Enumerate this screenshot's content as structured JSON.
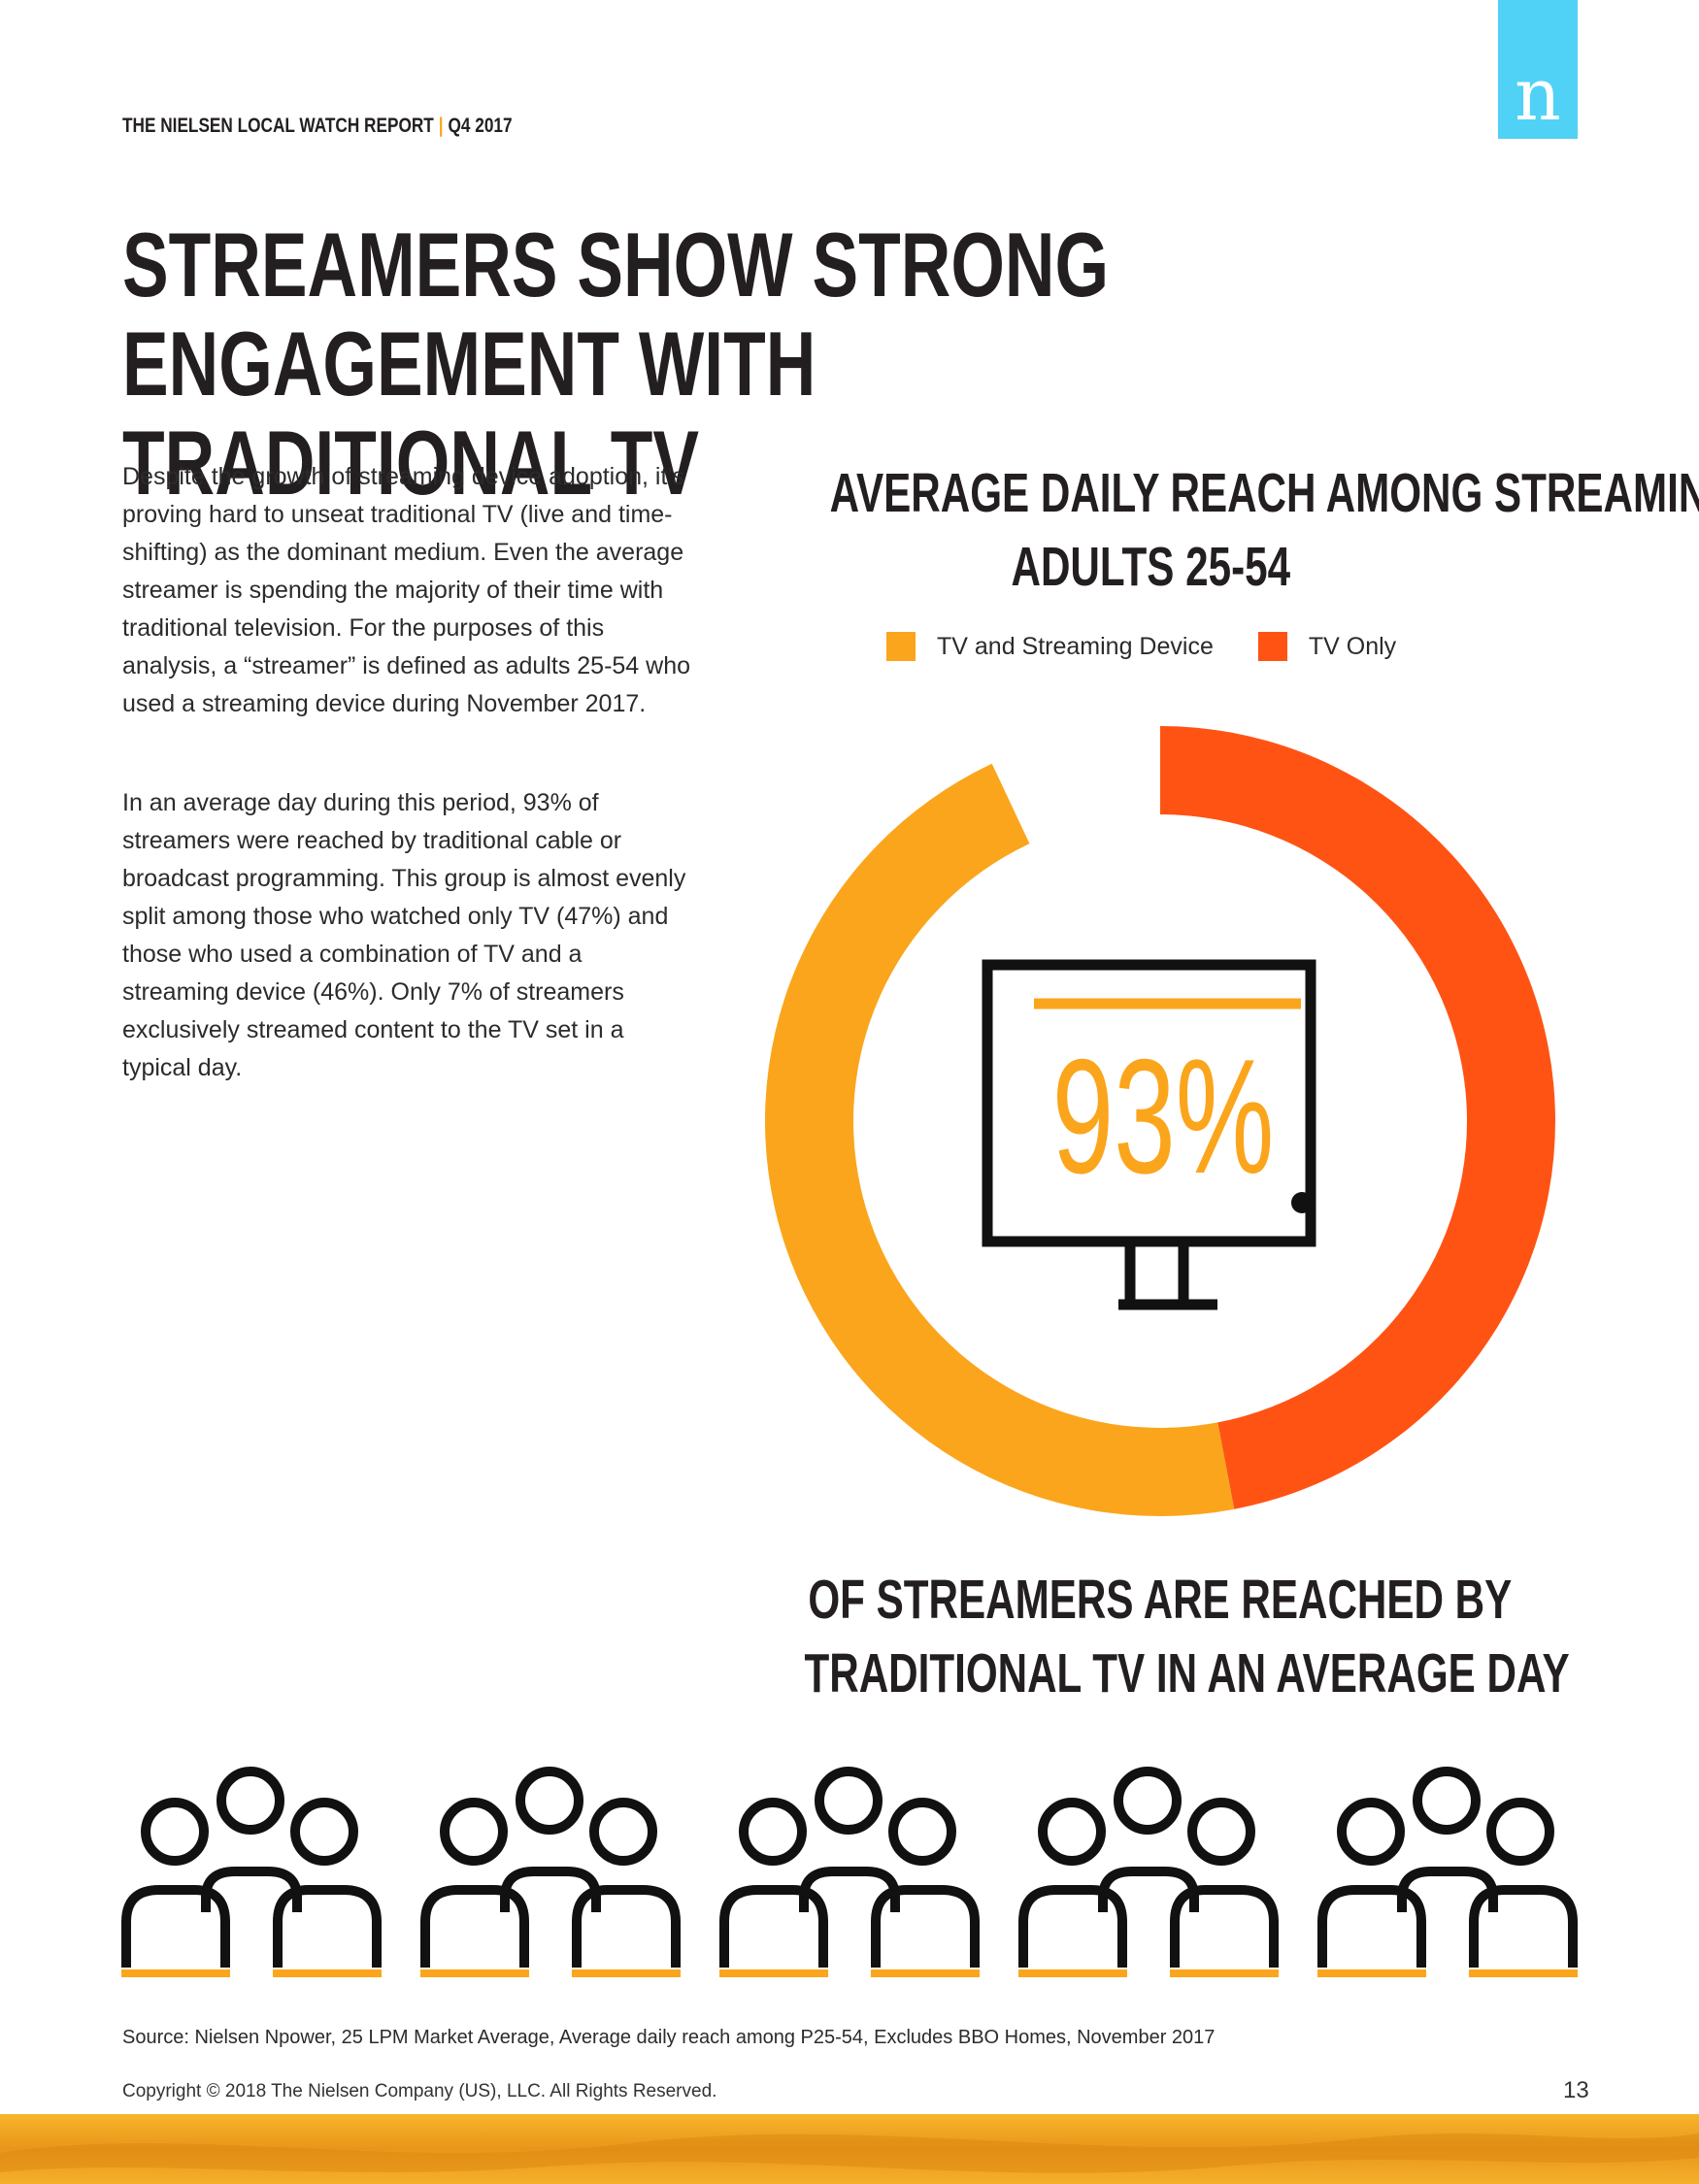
{
  "header": {
    "report_name": "THE NIELSEN LOCAL WATCH REPORT",
    "separator": "|",
    "period": "Q4 2017",
    "logo_letter": "n",
    "logo_color": "#4fd2f5"
  },
  "headline": {
    "line1": "STREAMERS SHOW STRONG ENGAGEMENT WITH",
    "line2": "TRADITIONAL TV"
  },
  "body": {
    "paragraph1": "Despite the growth of streaming device adoption, it’s proving hard to unseat traditional TV (live and time-shifting) as the dominant medium. Even the average streamer is spending the majority of their time with traditional television. For the purposes of this analysis, a “streamer” is defined as adults 25-54 who used a streaming device during November 2017.",
    "paragraph2": "In an average day during this period, 93% of streamers were reached by traditional cable or broadcast programming. This group is almost evenly split among those who watched only TV (47%) and those who used a combination of TV and a streaming device (46%). Only 7% of streamers exclusively streamed content to the TV set in a typical day."
  },
  "chart_data": {
    "type": "pie",
    "variant": "donut",
    "title_line1": "AVERAGE DAILY REACH AMONG STREAMING",
    "title_line2": "ADULTS 25-54",
    "legend_placement": "top",
    "series": [
      {
        "name": "TV Only",
        "value": 47,
        "color": "#ff5314"
      },
      {
        "name": "TV and Streaming Device",
        "value": 46,
        "color": "#fba51c"
      }
    ],
    "gap_value": 7,
    "center_label": "93%",
    "caption_line1": "OF STREAMERS ARE REACHED BY",
    "caption_line2": "TRADITIONAL TV IN AN AVERAGE DAY"
  },
  "icons": {
    "monitor": "tv-monitor-icon",
    "people_group": "people-group-icon",
    "people_group_count": 5,
    "accent_color": "#fba51c"
  },
  "footer": {
    "source": "Source: Nielsen Npower, 25 LPM Market Average, Average daily reach among P25-54, Excludes BBO Homes, November 2017",
    "copyright": "Copyright © 2018 The Nielsen Company (US), LLC. All Rights Reserved.",
    "page_number": "13",
    "band_color": "#f2a51a"
  }
}
